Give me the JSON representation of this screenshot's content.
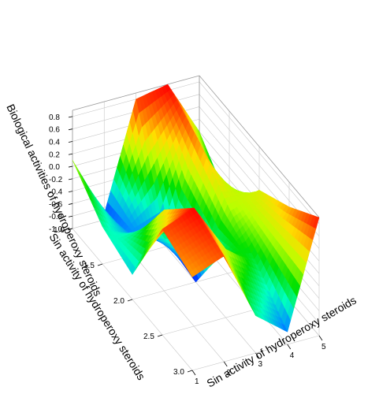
{
  "chart_data": {
    "type": "surface3d",
    "title": "",
    "zlabel": "Biological activities of hydroperoxy steroids",
    "ylabel": "Sin activity of hydroperoxy steroids",
    "xlabel": "Sin activity of hydroperoxy steroids",
    "y_ticks": [
      "1.0",
      "1.5",
      "2.0",
      "2.5",
      "3.0"
    ],
    "x_ticks": [
      "1",
      "2",
      "3",
      "4",
      "5"
    ],
    "z_ticks": [
      "-1.0",
      "-0.8",
      "-0.6",
      "-0.4",
      "-0.2",
      "0.0",
      "0.2",
      "0.4",
      "0.6",
      "0.8"
    ],
    "y_range": [
      1.0,
      3.0
    ],
    "x_range": [
      1,
      5
    ],
    "z_range": [
      -1.0,
      0.9
    ],
    "grid": true,
    "colormap": [
      "#ff0000",
      "#ff6a00",
      "#ffdd00",
      "#b8ff00",
      "#00e000",
      "#00ffc0",
      "#0090ff",
      "#0000ff"
    ],
    "surface_grid_y": [
      1.0,
      1.5,
      2.0,
      2.5,
      3.0
    ],
    "surface_grid_x": [
      1,
      2,
      3,
      4,
      5
    ],
    "surface_z": [
      [
        0.1,
        -0.9,
        0.8,
        0.9,
        0.0
      ],
      [
        -0.4,
        -0.7,
        -0.9,
        0.6,
        -0.6
      ],
      [
        -0.6,
        0.3,
        -1.0,
        0.1,
        0.2
      ],
      [
        0.7,
        0.9,
        0.1,
        -0.3,
        0.5
      ],
      [
        0.5,
        0.7,
        -0.4,
        -0.8,
        0.9
      ]
    ]
  }
}
